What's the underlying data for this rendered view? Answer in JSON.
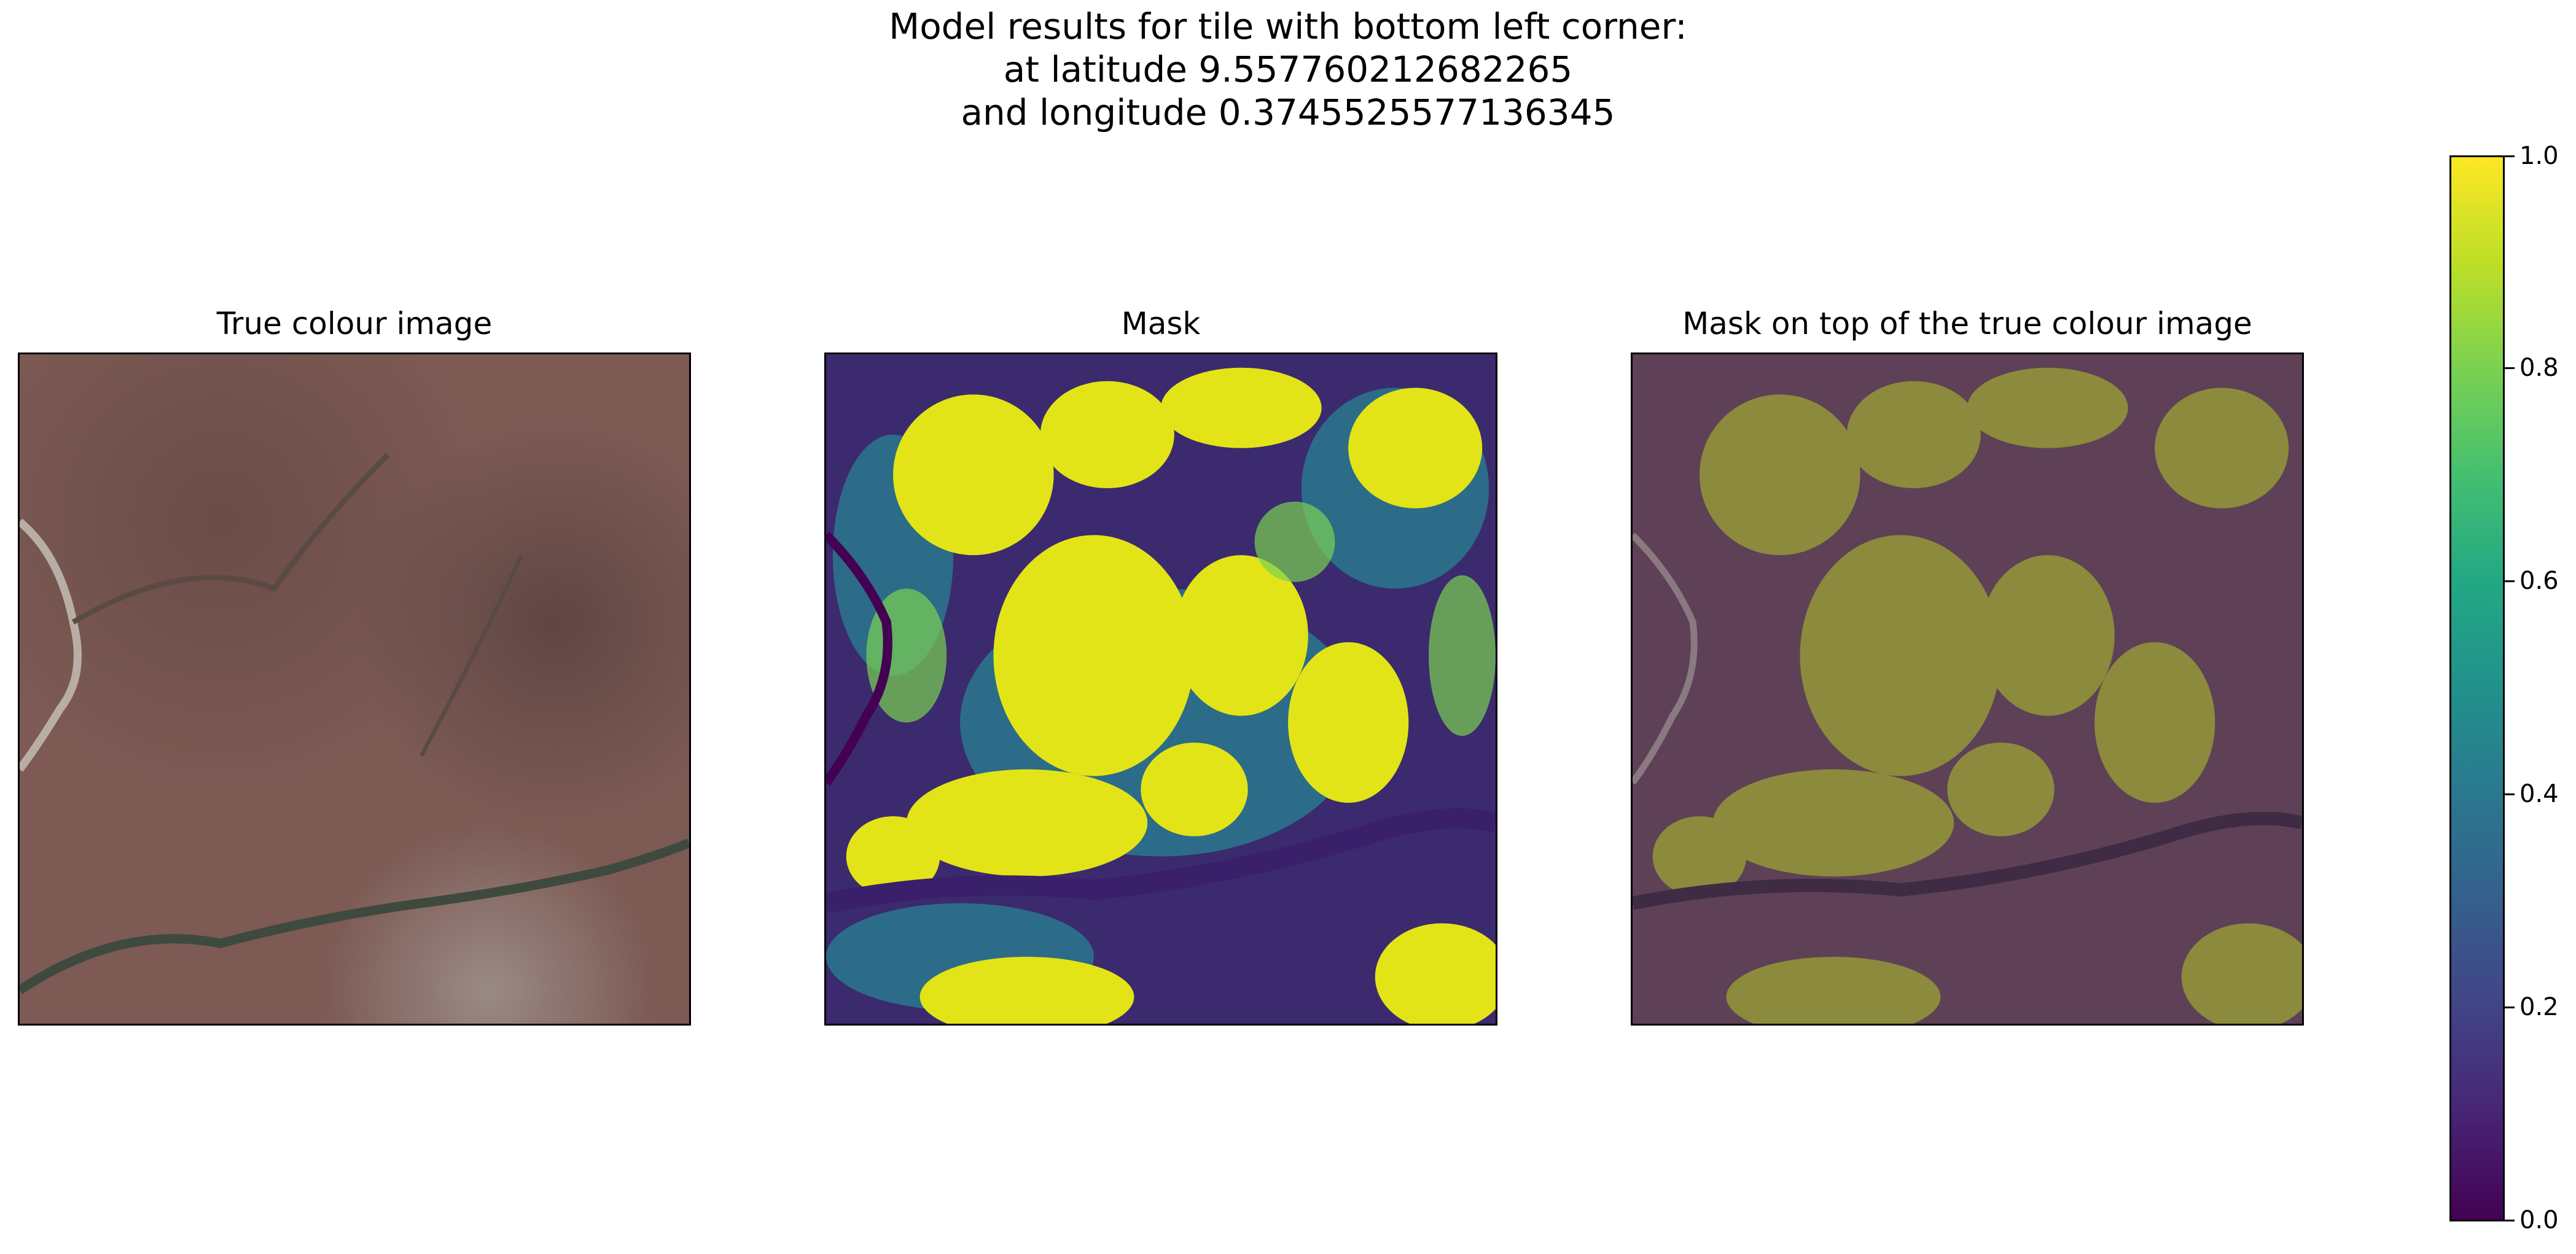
{
  "figure": {
    "title_lines": [
      "Model results for tile with bottom left corner:",
      "at latitude 9.557760212682265",
      "and longitude 0.3745525577136345"
    ]
  },
  "panels": [
    {
      "title": "True colour image",
      "kind": "true-colour-satellite-image"
    },
    {
      "title": "Mask",
      "kind": "viridis-probability-mask"
    },
    {
      "title": "Mask on top of the true colour image",
      "kind": "mask-overlay"
    }
  ],
  "colorbar": {
    "colormap": "viridis",
    "range": [
      0.0,
      1.0
    ],
    "ticks": [
      "0.0",
      "0.2",
      "0.4",
      "0.6",
      "0.8",
      "1.0"
    ]
  },
  "colors": {
    "viridis_low": "#440154",
    "viridis_high": "#fde725",
    "ground": "#7a5550",
    "overlay_yellow": "#8c8a3c"
  }
}
